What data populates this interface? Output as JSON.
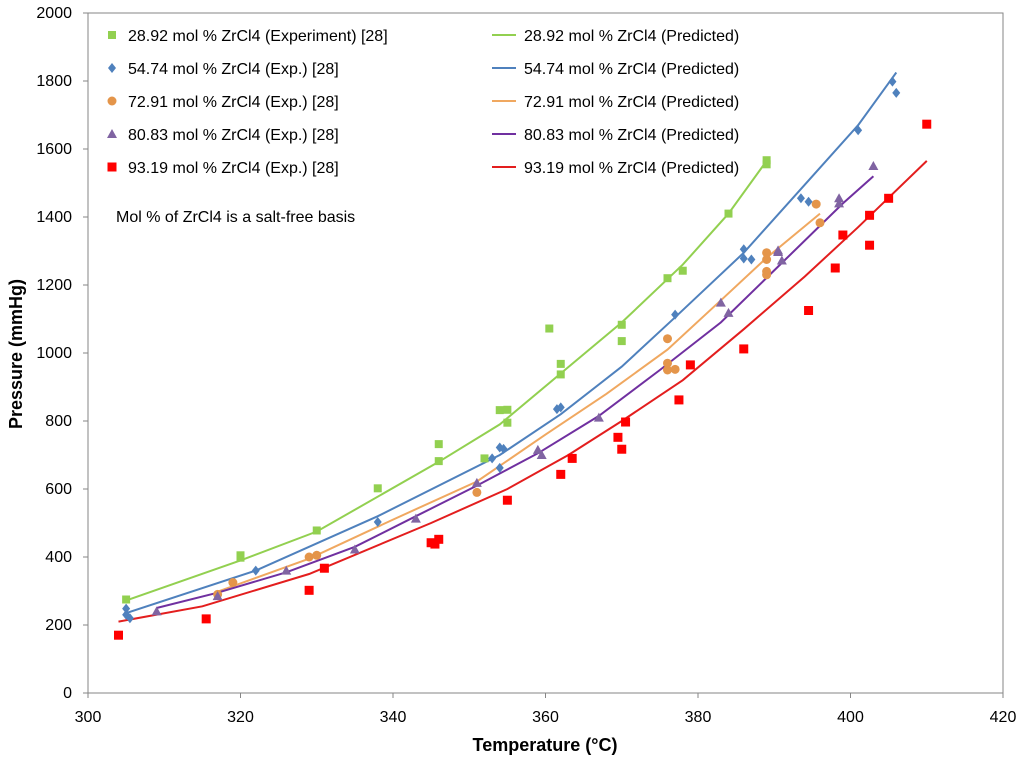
{
  "chart_data": {
    "type": "scatter",
    "title": "",
    "xlabel": "Temperature (°C)",
    "ylabel": "Pressure (mmHg)",
    "xlim": [
      300,
      420
    ],
    "ylim": [
      0,
      2000
    ],
    "xticks": [
      300,
      320,
      340,
      360,
      380,
      400,
      420
    ],
    "yticks": [
      0,
      200,
      400,
      600,
      800,
      1000,
      1200,
      1400,
      1600,
      1800,
      2000
    ],
    "grid": false,
    "note": "Mol % of ZrCl4 is a salt-free basis",
    "series": [
      {
        "name": "28.92 mol % ZrCl4 (Experiment) [28]",
        "kind": "experiment",
        "marker": "square-small",
        "color": "#92D050",
        "points": [
          [
            305,
            275
          ],
          [
            320,
            405
          ],
          [
            320,
            398
          ],
          [
            330,
            478
          ],
          [
            338,
            602
          ],
          [
            346,
            732
          ],
          [
            346,
            682
          ],
          [
            352,
            690
          ],
          [
            354,
            832
          ],
          [
            355,
            833
          ],
          [
            355,
            795
          ],
          [
            360.5,
            1072
          ],
          [
            362,
            968
          ],
          [
            362,
            937
          ],
          [
            370,
            1083
          ],
          [
            370,
            1035
          ],
          [
            376,
            1220
          ],
          [
            378,
            1242
          ],
          [
            384,
            1410
          ],
          [
            389,
            1567
          ],
          [
            389,
            1555
          ]
        ]
      },
      {
        "name": "54.74 mol % ZrCl4 (Exp.) [28]",
        "kind": "experiment",
        "marker": "diamond",
        "color": "#4F81BD",
        "points": [
          [
            305,
            230
          ],
          [
            305,
            248
          ],
          [
            305.5,
            220
          ],
          [
            322,
            360
          ],
          [
            338,
            503
          ],
          [
            353,
            690
          ],
          [
            354,
            722
          ],
          [
            354.5,
            718
          ],
          [
            354,
            662
          ],
          [
            361.5,
            835
          ],
          [
            362,
            840
          ],
          [
            377,
            1113
          ],
          [
            386,
            1305
          ],
          [
            386,
            1278
          ],
          [
            387,
            1275
          ],
          [
            393.5,
            1455
          ],
          [
            394.5,
            1445
          ],
          [
            401,
            1655
          ],
          [
            405.5,
            1798
          ],
          [
            406,
            1765
          ]
        ]
      },
      {
        "name": "72.91 mol % ZrCl4 (Exp.) [28]",
        "kind": "experiment",
        "marker": "circle",
        "color": "#E4954A",
        "points": [
          [
            317,
            290
          ],
          [
            319,
            325
          ],
          [
            329,
            400
          ],
          [
            330,
            405
          ],
          [
            351,
            590
          ],
          [
            376,
            1042
          ],
          [
            376,
            970
          ],
          [
            376,
            950
          ],
          [
            377,
            952
          ],
          [
            389,
            1295
          ],
          [
            389,
            1275
          ],
          [
            389,
            1240
          ],
          [
            389,
            1230
          ],
          [
            395.5,
            1438
          ],
          [
            396,
            1383
          ]
        ]
      },
      {
        "name": "80.83 mol % ZrCl4 (Exp.) [28]",
        "kind": "experiment",
        "marker": "triangle",
        "color": "#8064A2",
        "points": [
          [
            309,
            240
          ],
          [
            317,
            285
          ],
          [
            326,
            360
          ],
          [
            335,
            422
          ],
          [
            343,
            513
          ],
          [
            351,
            618
          ],
          [
            359,
            715
          ],
          [
            359.5,
            700
          ],
          [
            367,
            810
          ],
          [
            383,
            1148
          ],
          [
            384,
            1118
          ],
          [
            390.5,
            1302
          ],
          [
            390.5,
            1297
          ],
          [
            391,
            1272
          ],
          [
            398.5,
            1455
          ],
          [
            398.5,
            1440
          ],
          [
            403,
            1550
          ]
        ]
      },
      {
        "name": "93.19 mol % ZrCl4 (Exp.) [28]",
        "kind": "experiment",
        "marker": "square",
        "color": "#FF0000",
        "points": [
          [
            304,
            170
          ],
          [
            315.5,
            218
          ],
          [
            329,
            302
          ],
          [
            331,
            367
          ],
          [
            345,
            442
          ],
          [
            345.5,
            438
          ],
          [
            346,
            452
          ],
          [
            355,
            567
          ],
          [
            362,
            643
          ],
          [
            363.5,
            690
          ],
          [
            369.5,
            752
          ],
          [
            370,
            717
          ],
          [
            370.5,
            797
          ],
          [
            377.5,
            862
          ],
          [
            379,
            965
          ],
          [
            386,
            1012
          ],
          [
            394.5,
            1125
          ],
          [
            398,
            1250
          ],
          [
            399,
            1347
          ],
          [
            402.5,
            1317
          ],
          [
            402.5,
            1405
          ],
          [
            405,
            1455
          ],
          [
            410,
            1673
          ]
        ]
      },
      {
        "name": "28.92 mol % ZrCl4 (Predicted)",
        "kind": "predicted",
        "color": "#92D050",
        "points": [
          [
            305,
            272
          ],
          [
            320,
            390
          ],
          [
            330,
            475
          ],
          [
            346,
            680
          ],
          [
            354,
            790
          ],
          [
            362,
            940
          ],
          [
            370,
            1090
          ],
          [
            378,
            1260
          ],
          [
            384,
            1410
          ],
          [
            389,
            1565
          ]
        ]
      },
      {
        "name": "54.74 mol % ZrCl4 (Predicted)",
        "kind": "predicted",
        "color": "#4F81BD",
        "points": [
          [
            305,
            235
          ],
          [
            322,
            360
          ],
          [
            338,
            520
          ],
          [
            354,
            700
          ],
          [
            362,
            820
          ],
          [
            370,
            960
          ],
          [
            377,
            1105
          ],
          [
            386,
            1295
          ],
          [
            394,
            1495
          ],
          [
            401,
            1670
          ],
          [
            406,
            1825
          ]
        ]
      },
      {
        "name": "72.91 mol % ZrCl4 (Predicted)",
        "kind": "predicted",
        "color": "#F0A860",
        "points": [
          [
            317,
            298
          ],
          [
            329,
            395
          ],
          [
            340,
            510
          ],
          [
            351,
            622
          ],
          [
            360,
            760
          ],
          [
            368,
            880
          ],
          [
            376,
            1010
          ],
          [
            383,
            1155
          ],
          [
            389,
            1280
          ],
          [
            396,
            1410
          ]
        ]
      },
      {
        "name": "80.83 mol % ZrCl4 (Predicted)",
        "kind": "predicted",
        "color": "#7030A0",
        "points": [
          [
            309,
            250
          ],
          [
            317,
            295
          ],
          [
            326,
            355
          ],
          [
            335,
            430
          ],
          [
            343,
            520
          ],
          [
            351,
            610
          ],
          [
            359,
            705
          ],
          [
            367,
            815
          ],
          [
            375,
            950
          ],
          [
            383,
            1090
          ],
          [
            391,
            1265
          ],
          [
            399,
            1440
          ],
          [
            403,
            1520
          ]
        ]
      },
      {
        "name": "93.19 mol % ZrCl4 (Predicted)",
        "kind": "predicted",
        "color": "#E31E1E",
        "points": [
          [
            304,
            210
          ],
          [
            315,
            255
          ],
          [
            329,
            350
          ],
          [
            345,
            500
          ],
          [
            355,
            600
          ],
          [
            363,
            700
          ],
          [
            370,
            800
          ],
          [
            378,
            920
          ],
          [
            386,
            1070
          ],
          [
            394,
            1225
          ],
          [
            401,
            1370
          ],
          [
            410,
            1565
          ]
        ]
      }
    ]
  }
}
